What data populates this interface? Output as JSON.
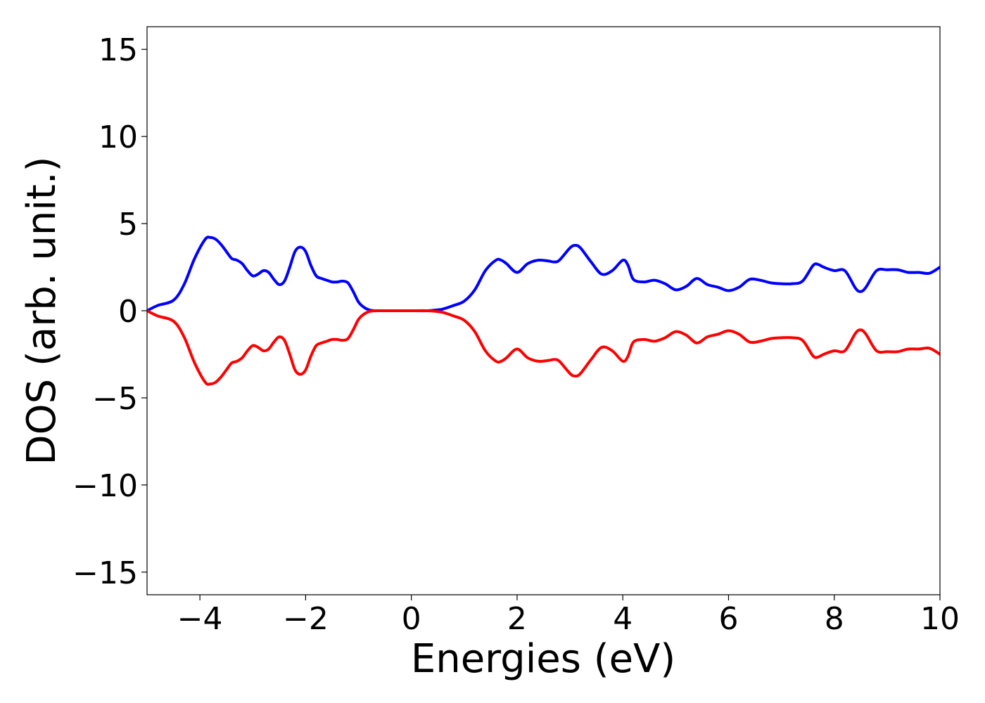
{
  "chart_data": {
    "type": "line",
    "title": "",
    "xlabel": "Energies (eV)",
    "ylabel": "DOS (arb. unit.)",
    "xlim": [
      -5,
      10
    ],
    "ylim": [
      -16.3,
      16.3
    ],
    "xticks": [
      -4,
      -2,
      0,
      2,
      4,
      6,
      8,
      10
    ],
    "xtick_labels": [
      "−4",
      "−2",
      "0",
      "2",
      "4",
      "6",
      "8",
      "10"
    ],
    "yticks": [
      15,
      10,
      5,
      0,
      -5,
      -10,
      -15
    ],
    "ytick_labels": [
      "15",
      "10",
      "5",
      "0",
      "−5",
      "−10",
      "−15"
    ],
    "grid": false,
    "legend": "none",
    "series": [
      {
        "color": "#0000ff",
        "x": [
          -5,
          -4.8,
          -4.5,
          -4.3,
          -4.1,
          -3.9,
          -3.8,
          -3.7,
          -3.6,
          -3.5,
          -3.4,
          -3.3,
          -3.2,
          -3.1,
          -3.0,
          -2.9,
          -2.8,
          -2.7,
          -2.6,
          -2.5,
          -2.4,
          -2.3,
          -2.2,
          -2.1,
          -2.0,
          -1.9,
          -1.8,
          -1.7,
          -1.6,
          -1.5,
          -1.4,
          -1.3,
          -1.2,
          -1.1,
          -1.0,
          -0.9,
          -0.8,
          -0.7,
          -0.6,
          -0.5,
          -0.3,
          0.0,
          0.3,
          0.5,
          0.6,
          0.8,
          1.0,
          1.2,
          1.4,
          1.6,
          1.7,
          1.8,
          2.0,
          2.2,
          2.4,
          2.6,
          2.7,
          2.8,
          3.0,
          3.1,
          3.2,
          3.4,
          3.6,
          3.8,
          4.0,
          4.1,
          4.2,
          4.4,
          4.6,
          4.8,
          5.0,
          5.2,
          5.4,
          5.6,
          5.8,
          6.0,
          6.2,
          6.4,
          6.6,
          6.8,
          7.0,
          7.2,
          7.4,
          7.6,
          7.7,
          7.8,
          8.0,
          8.2,
          8.4,
          8.5,
          8.6,
          8.8,
          9.0,
          9.2,
          9.4,
          9.6,
          9.8,
          10.0
        ],
        "values": [
          0.0,
          0.3,
          0.6,
          1.5,
          3.0,
          4.1,
          4.2,
          4.1,
          3.8,
          3.4,
          3.0,
          2.9,
          2.7,
          2.3,
          2.0,
          2.1,
          2.3,
          2.2,
          1.8,
          1.5,
          1.7,
          2.5,
          3.4,
          3.65,
          3.4,
          2.6,
          2.0,
          1.85,
          1.75,
          1.65,
          1.65,
          1.7,
          1.6,
          1.1,
          0.5,
          0.2,
          0.05,
          0.0,
          0.0,
          0.0,
          0.0,
          0.0,
          0.0,
          0.05,
          0.1,
          0.3,
          0.55,
          1.2,
          2.3,
          2.9,
          2.9,
          2.7,
          2.2,
          2.7,
          2.9,
          2.85,
          2.8,
          2.9,
          3.6,
          3.75,
          3.6,
          2.8,
          2.1,
          2.3,
          2.9,
          2.6,
          1.8,
          1.65,
          1.75,
          1.55,
          1.2,
          1.4,
          1.85,
          1.5,
          1.35,
          1.15,
          1.35,
          1.8,
          1.75,
          1.6,
          1.55,
          1.55,
          1.7,
          2.6,
          2.65,
          2.5,
          2.3,
          2.3,
          1.3,
          1.1,
          1.35,
          2.3,
          2.35,
          2.35,
          2.2,
          2.2,
          2.15,
          2.5
        ]
      },
      {
        "color": "#ff0000",
        "x": [
          -5,
          -4.8,
          -4.5,
          -4.3,
          -4.1,
          -3.9,
          -3.8,
          -3.7,
          -3.6,
          -3.5,
          -3.4,
          -3.3,
          -3.2,
          -3.1,
          -3.0,
          -2.9,
          -2.8,
          -2.7,
          -2.6,
          -2.5,
          -2.4,
          -2.3,
          -2.2,
          -2.1,
          -2.0,
          -1.9,
          -1.8,
          -1.7,
          -1.6,
          -1.5,
          -1.4,
          -1.3,
          -1.2,
          -1.1,
          -1.0,
          -0.9,
          -0.8,
          -0.7,
          -0.6,
          -0.5,
          -0.3,
          0.0,
          0.3,
          0.5,
          0.6,
          0.8,
          1.0,
          1.2,
          1.4,
          1.6,
          1.7,
          1.8,
          2.0,
          2.2,
          2.4,
          2.6,
          2.7,
          2.8,
          3.0,
          3.1,
          3.2,
          3.4,
          3.6,
          3.8,
          4.0,
          4.1,
          4.2,
          4.4,
          4.6,
          4.8,
          5.0,
          5.2,
          5.4,
          5.6,
          5.8,
          6.0,
          6.2,
          6.4,
          6.6,
          6.8,
          7.0,
          7.2,
          7.4,
          7.6,
          7.7,
          7.8,
          8.0,
          8.2,
          8.4,
          8.5,
          8.6,
          8.8,
          9.0,
          9.2,
          9.4,
          9.6,
          9.8,
          10.0
        ],
        "values": [
          0.0,
          -0.3,
          -0.6,
          -1.5,
          -3.0,
          -4.1,
          -4.2,
          -4.1,
          -3.8,
          -3.4,
          -3.0,
          -2.9,
          -2.7,
          -2.3,
          -2.0,
          -2.1,
          -2.3,
          -2.2,
          -1.8,
          -1.5,
          -1.7,
          -2.5,
          -3.4,
          -3.65,
          -3.4,
          -2.6,
          -2.0,
          -1.85,
          -1.75,
          -1.65,
          -1.65,
          -1.7,
          -1.6,
          -1.1,
          -0.5,
          -0.2,
          -0.05,
          0.0,
          0.0,
          0.0,
          0.0,
          0.0,
          0.0,
          -0.05,
          -0.1,
          -0.3,
          -0.55,
          -1.2,
          -2.3,
          -2.9,
          -2.9,
          -2.7,
          -2.2,
          -2.7,
          -2.9,
          -2.85,
          -2.8,
          -2.9,
          -3.6,
          -3.75,
          -3.6,
          -2.8,
          -2.1,
          -2.3,
          -2.9,
          -2.6,
          -1.8,
          -1.65,
          -1.75,
          -1.55,
          -1.2,
          -1.4,
          -1.85,
          -1.5,
          -1.35,
          -1.15,
          -1.35,
          -1.8,
          -1.75,
          -1.6,
          -1.55,
          -1.55,
          -1.7,
          -2.6,
          -2.65,
          -2.5,
          -2.3,
          -2.3,
          -1.3,
          -1.1,
          -1.35,
          -2.3,
          -2.35,
          -2.35,
          -2.2,
          -2.2,
          -2.15,
          -2.5
        ]
      }
    ]
  }
}
